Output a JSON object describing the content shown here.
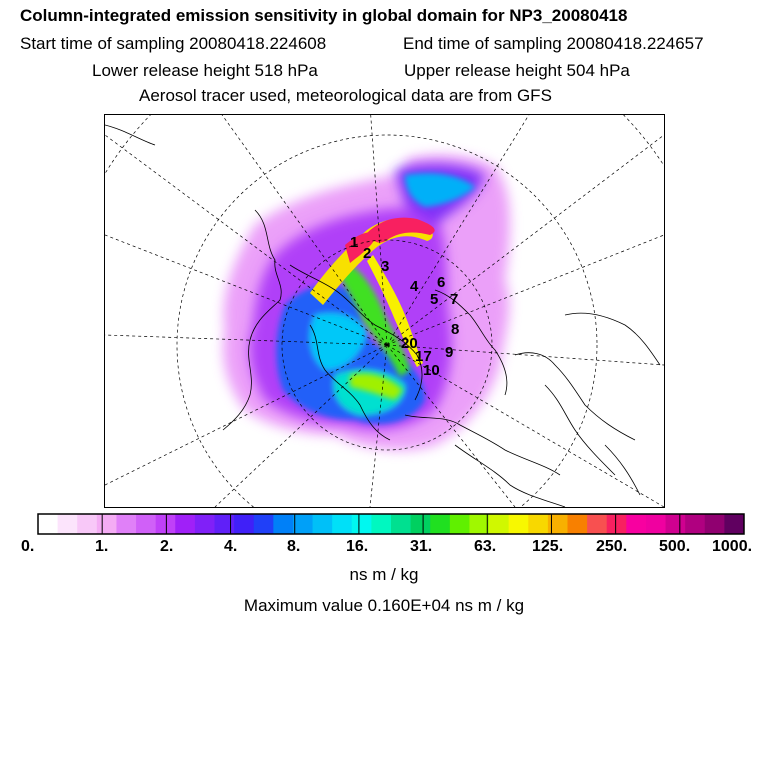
{
  "title": "Column-integrated emission sensitivity in global domain for NP3_20080418",
  "sampling": {
    "start": "Start time of sampling 20080418.224608",
    "end": "End time of sampling 20080418.224657"
  },
  "release": {
    "lower": "Lower release height  518 hPa",
    "upper": "Upper release height  504 hPa"
  },
  "info_line": "Aerosol tracer used, meteorological data are from GFS",
  "colorbar": {
    "tick_labels": [
      "0.",
      "1.",
      "2.",
      "4.",
      "8.",
      "16.",
      "31.",
      "63.",
      "125.",
      "250.",
      "500.",
      "1000."
    ],
    "unit": "ns m / kg",
    "colors": [
      "#ffffff",
      "#fce4fc",
      "#f8c8f8",
      "#f4acf4",
      "#e080f8",
      "#d060f8",
      "#c040f8",
      "#a020f8",
      "#8020f8",
      "#6020f8",
      "#4020f8",
      "#2040f8",
      "#0080f8",
      "#00a0f8",
      "#00c0f8",
      "#00e0f8",
      "#00f8f0",
      "#00f8c0",
      "#00e090",
      "#00d060",
      "#20e020",
      "#60f000",
      "#a0f800",
      "#d0f800",
      "#f8f800",
      "#f8d800",
      "#f8b000",
      "#f88000",
      "#f85050",
      "#f82060",
      "#f800a0",
      "#f000a0",
      "#d00090",
      "#b00080",
      "#900070",
      "#600060"
    ]
  },
  "max_value": "Maximum value  0.160E+04 ns m / kg",
  "map_labels": [
    {
      "text": "1",
      "kind": "trajectory-number"
    },
    {
      "text": "2",
      "kind": "trajectory-number"
    },
    {
      "text": "3",
      "kind": "trajectory-number"
    },
    {
      "text": "4",
      "kind": "trajectory-number"
    },
    {
      "text": "5",
      "kind": "trajectory-number"
    },
    {
      "text": "6",
      "kind": "trajectory-number"
    },
    {
      "text": "7",
      "kind": "trajectory-number"
    },
    {
      "text": "8",
      "kind": "trajectory-number"
    },
    {
      "text": "9",
      "kind": "trajectory-number"
    },
    {
      "text": "20",
      "kind": "trajectory-number"
    },
    {
      "text": "17",
      "kind": "trajectory-number"
    },
    {
      "text": "10",
      "kind": "trajectory-number"
    }
  ]
}
